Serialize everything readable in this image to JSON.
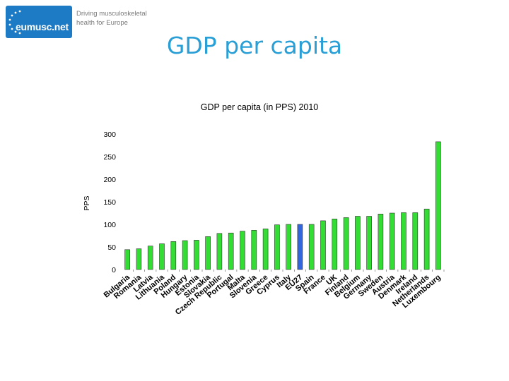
{
  "slide": {
    "title": "GDP per capita"
  },
  "logo": {
    "name": "eumusc.net",
    "tagline_line1": "Driving musculoskeletal",
    "tagline_line2": "health for Europe"
  },
  "colors": {
    "bar_default": "#33dd33",
    "bar_eu27": "#3366dd",
    "title_blue": "#2a9fd6",
    "logo_blue": "#1d7ac4"
  },
  "chart_data": {
    "type": "bar",
    "title": "GDP per capita (in PPS) 2010",
    "ylabel": "PPS",
    "xlabel": "",
    "ylim": [
      0,
      300
    ],
    "yticks": [
      0,
      50,
      100,
      150,
      200,
      250,
      300
    ],
    "categories": [
      "Bulgaria",
      "Romania",
      "Latvia",
      "Lithuania",
      "Poland",
      "Hungary",
      "Estonia",
      "Slovakia",
      "Czech Republic",
      "Portugal",
      "Malta",
      "Slovenia",
      "Greece",
      "Cyprus",
      "Italy",
      "EU27",
      "Spain",
      "France",
      "UK",
      "Finland",
      "Belgium",
      "Germany",
      "Sweden",
      "Austria",
      "Denmark",
      "Ireland",
      "Netherlands",
      "Luxembourg"
    ],
    "values": [
      44,
      46,
      52,
      57,
      62,
      64,
      65,
      73,
      80,
      81,
      85,
      87,
      90,
      99,
      100,
      100,
      100,
      108,
      112,
      115,
      118,
      118,
      123,
      125,
      126,
      126,
      134,
      283
    ],
    "highlight": "EU27"
  }
}
